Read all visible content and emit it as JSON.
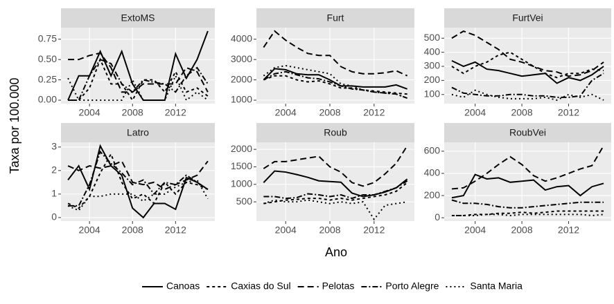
{
  "axis_labels": {
    "y": "Taxa por 100.000",
    "x": "Ano"
  },
  "chart_data": [
    {
      "type": "line",
      "title": "ExtoMS",
      "x": [
        2002,
        2003,
        2004,
        2005,
        2006,
        2007,
        2008,
        2009,
        2010,
        2011,
        2012,
        2013,
        2014,
        2015
      ],
      "xlim": [
        2001.35,
        2015.65
      ],
      "xticks": [
        2004,
        2008,
        2012
      ],
      "ylim": [
        -0.0425,
        0.8925
      ],
      "yticks": [
        {
          "value": 0,
          "label": "0.00"
        },
        0.25,
        {
          "value": 0.5,
          "label": "0.50"
        },
        0.75
      ],
      "grid": true,
      "series": [
        {
          "name": "Canoas",
          "color": "#000000",
          "dash": "none",
          "values": [
            0,
            0.3,
            0.3,
            0.6,
            0.3,
            0.6,
            0.2,
            0,
            0,
            0,
            0.57,
            0.27,
            0.5,
            0.85
          ]
        },
        {
          "name": "Caxias do Sul",
          "color": "#000000",
          "dash": "4 4",
          "values": [
            0,
            0,
            0.15,
            0.5,
            0.2,
            0.2,
            0,
            0.25,
            0.25,
            0.1,
            0.35,
            0.1,
            0.15,
            0.05
          ]
        },
        {
          "name": "Pelotas",
          "color": "#000000",
          "dash": "9 5",
          "values": [
            0.5,
            0.5,
            0.55,
            0.58,
            0.4,
            0.1,
            0.1,
            0.2,
            0.2,
            0.2,
            0.2,
            0.4,
            0.35,
            0.1
          ]
        },
        {
          "name": "Porto Alegre",
          "color": "#000000",
          "dash": "8 3 2 3",
          "values": [
            0,
            0,
            0.3,
            0.5,
            0.45,
            0.2,
            0.1,
            0.25,
            0.22,
            0.2,
            0.1,
            0.3,
            0.4,
            0.2
          ]
        },
        {
          "name": "Santa Maria",
          "color": "#000000",
          "dash": "2 4",
          "values": [
            0.27,
            0,
            0,
            0,
            0,
            0,
            0.25,
            0,
            0,
            0,
            0.3,
            0,
            0.1,
            0
          ]
        }
      ]
    },
    {
      "type": "line",
      "title": "Furt",
      "x": [
        2002,
        2003,
        2004,
        2005,
        2006,
        2007,
        2008,
        2009,
        2010,
        2011,
        2012,
        2013,
        2014,
        2015
      ],
      "xlim": [
        2001.35,
        2015.65
      ],
      "xticks": [
        2004,
        2008,
        2012
      ],
      "ylim": [
        830,
        4570
      ],
      "yticks": [
        1000,
        2000,
        3000,
        4000
      ],
      "grid": true,
      "series": [
        {
          "name": "Canoas",
          "color": "#000000",
          "dash": "none",
          "values": [
            2000,
            2550,
            2500,
            2300,
            2250,
            2250,
            2000,
            1700,
            1700,
            1650,
            1650,
            1650,
            1750,
            1550
          ]
        },
        {
          "name": "Caxias do Sul",
          "color": "#000000",
          "dash": "4 4",
          "values": [
            2000,
            2200,
            2200,
            2000,
            1900,
            1950,
            1800,
            1600,
            1600,
            1500,
            1450,
            1400,
            1350,
            1300
          ]
        },
        {
          "name": "Pelotas",
          "color": "#000000",
          "dash": "9 5",
          "values": [
            3600,
            4400,
            3950,
            3600,
            3300,
            3200,
            3200,
            2650,
            2400,
            2300,
            2300,
            2350,
            2450,
            2200
          ]
        },
        {
          "name": "Porto Alegre",
          "color": "#000000",
          "dash": "8 3 2 3",
          "values": [
            2000,
            2300,
            2400,
            2250,
            2100,
            2050,
            1900,
            1700,
            1550,
            1500,
            1400,
            1350,
            1300,
            1100
          ]
        },
        {
          "name": "Santa Maria",
          "color": "#000000",
          "dash": "2 4",
          "values": [
            2200,
            2600,
            2700,
            2600,
            2500,
            2400,
            2300,
            1800,
            1700,
            1500,
            1400,
            1350,
            1300,
            1100
          ]
        }
      ]
    },
    {
      "type": "line",
      "title": "FurtVei",
      "x": [
        2002,
        2003,
        2004,
        2005,
        2006,
        2007,
        2008,
        2009,
        2010,
        2011,
        2012,
        2013,
        2014,
        2015
      ],
      "xlim": [
        2001.35,
        2015.65
      ],
      "xticks": [
        2004,
        2008,
        2012
      ],
      "ylim": [
        35,
        575
      ],
      "yticks": [
        100,
        200,
        300,
        400,
        500
      ],
      "grid": true,
      "series": [
        {
          "name": "Canoas",
          "color": "#000000",
          "dash": "none",
          "values": [
            340,
            300,
            330,
            280,
            270,
            250,
            230,
            240,
            250,
            180,
            220,
            200,
            240,
            300
          ]
        },
        {
          "name": "Caxias do Sul",
          "color": "#000000",
          "dash": "4 4",
          "values": [
            300,
            250,
            300,
            330,
            380,
            400,
            350,
            300,
            250,
            220,
            250,
            250,
            280,
            270
          ]
        },
        {
          "name": "Pelotas",
          "color": "#000000",
          "dash": "9 5",
          "values": [
            500,
            550,
            520,
            470,
            420,
            350,
            330,
            300,
            270,
            260,
            230,
            240,
            270,
            330
          ]
        },
        {
          "name": "Porto Alegre",
          "color": "#000000",
          "dash": "8 3 2 3",
          "values": [
            150,
            110,
            100,
            90,
            90,
            100,
            100,
            90,
            90,
            80,
            80,
            90,
            200,
            250
          ]
        },
        {
          "name": "Santa Maria",
          "color": "#000000",
          "dash": "2 4",
          "values": [
            100,
            80,
            130,
            100,
            80,
            70,
            70,
            70,
            80,
            60,
            100,
            80,
            100,
            60
          ]
        }
      ]
    },
    {
      "type": "line",
      "title": "Latro",
      "x": [
        2002,
        2003,
        2004,
        2005,
        2006,
        2007,
        2008,
        2009,
        2010,
        2011,
        2012,
        2013,
        2014,
        2015
      ],
      "xlim": [
        2001.35,
        2015.65
      ],
      "xticks": [
        2004,
        2008,
        2012
      ],
      "ylim": [
        -0.15,
        3.2
      ],
      "yticks": [
        0,
        1,
        2,
        3
      ],
      "grid": true,
      "series": [
        {
          "name": "Canoas",
          "color": "#000000",
          "dash": "none",
          "values": [
            1.6,
            2.2,
            1.2,
            3.05,
            2.2,
            1.8,
            0.4,
            0,
            0.6,
            0.6,
            0.35,
            1.7,
            1.5,
            1.2
          ]
        },
        {
          "name": "Caxias do Sul",
          "color": "#000000",
          "dash": "4 4",
          "values": [
            0.6,
            0.4,
            0.9,
            1.9,
            2.7,
            1.5,
            0.8,
            1.0,
            0.6,
            1.5,
            1.0,
            1.5,
            1.4,
            1.2
          ]
        },
        {
          "name": "Pelotas",
          "color": "#000000",
          "dash": "9 5",
          "values": [
            2.2,
            2.0,
            2.2,
            2.1,
            2.2,
            2.4,
            1.5,
            1.4,
            1.5,
            1.2,
            1.4,
            1.6,
            1.8,
            2.4
          ]
        },
        {
          "name": "Porto Alegre",
          "color": "#000000",
          "dash": "8 3 2 3",
          "values": [
            0.5,
            0.5,
            1.4,
            2.8,
            2.3,
            1.9,
            1.4,
            1.6,
            1.0,
            1.5,
            1.4,
            1.8,
            1.5,
            1.2
          ]
        },
        {
          "name": "Santa Maria",
          "color": "#000000",
          "dash": "2 4",
          "values": [
            0.5,
            0.3,
            0.9,
            0.9,
            1.0,
            1.0,
            1.0,
            0.7,
            1.0,
            1.0,
            1.3,
            1.5,
            1.6,
            0.8
          ]
        }
      ]
    },
    {
      "type": "line",
      "title": "Roub",
      "x": [
        2002,
        2003,
        2004,
        2005,
        2006,
        2007,
        2008,
        2009,
        2010,
        2011,
        2012,
        2013,
        2014,
        2015
      ],
      "xlim": [
        2001.35,
        2015.65
      ],
      "xticks": [
        2004,
        2008,
        2012
      ],
      "ylim": [
        -50,
        2200
      ],
      "yticks": [
        500,
        1000,
        1500,
        2000
      ],
      "grid": true,
      "series": [
        {
          "name": "Canoas",
          "color": "#000000",
          "dash": "none",
          "values": [
            1050,
            1380,
            1350,
            1280,
            1200,
            1100,
            1080,
            1060,
            750,
            650,
            700,
            780,
            900,
            1150
          ]
        },
        {
          "name": "Caxias do Sul",
          "color": "#000000",
          "dash": "4 4",
          "values": [
            450,
            500,
            550,
            570,
            600,
            600,
            550,
            600,
            550,
            600,
            650,
            700,
            800,
            1050
          ]
        },
        {
          "name": "Pelotas",
          "color": "#000000",
          "dash": "9 5",
          "values": [
            1450,
            1650,
            1650,
            1700,
            1750,
            1800,
            1500,
            1350,
            1050,
            950,
            1050,
            1300,
            1600,
            2100
          ]
        },
        {
          "name": "Porto Alegre",
          "color": "#000000",
          "dash": "8 3 2 3",
          "values": [
            650,
            650,
            600,
            620,
            730,
            700,
            650,
            700,
            600,
            700,
            700,
            800,
            900,
            1100
          ]
        },
        {
          "name": "Santa Maria",
          "color": "#000000",
          "dash": "2 4",
          "values": [
            450,
            550,
            500,
            500,
            550,
            500,
            450,
            500,
            450,
            500,
            0,
            400,
            450,
            500
          ]
        }
      ]
    },
    {
      "type": "line",
      "title": "RoubVei",
      "x": [
        2002,
        2003,
        2004,
        2005,
        2006,
        2007,
        2008,
        2009,
        2010,
        2011,
        2012,
        2013,
        2014,
        2015
      ],
      "xlim": [
        2001.35,
        2015.65
      ],
      "xticks": [
        2004,
        2008,
        2012
      ],
      "ylim": [
        -30,
        680
      ],
      "yticks": [
        0,
        200,
        400,
        600
      ],
      "grid": true,
      "series": [
        {
          "name": "Canoas",
          "color": "#000000",
          "dash": "none",
          "values": [
            180,
            200,
            390,
            350,
            360,
            320,
            330,
            340,
            250,
            280,
            290,
            200,
            280,
            310
          ]
        },
        {
          "name": "Caxias do Sul",
          "color": "#000000",
          "dash": "4 4",
          "values": [
            20,
            20,
            30,
            30,
            40,
            40,
            50,
            40,
            50,
            60,
            60,
            60,
            60,
            60
          ]
        },
        {
          "name": "Pelotas",
          "color": "#000000",
          "dash": "9 5",
          "values": [
            260,
            270,
            330,
            400,
            480,
            550,
            480,
            380,
            330,
            360,
            400,
            440,
            470,
            650
          ]
        },
        {
          "name": "Porto Alegre",
          "color": "#000000",
          "dash": "8 3 2 3",
          "values": [
            160,
            130,
            130,
            120,
            100,
            90,
            90,
            100,
            110,
            120,
            130,
            140,
            140,
            140
          ]
        },
        {
          "name": "Santa Maria",
          "color": "#000000",
          "dash": "2 4",
          "values": [
            20,
            20,
            20,
            30,
            30,
            20,
            30,
            30,
            30,
            30,
            30,
            30,
            20,
            30
          ]
        }
      ]
    }
  ]
}
